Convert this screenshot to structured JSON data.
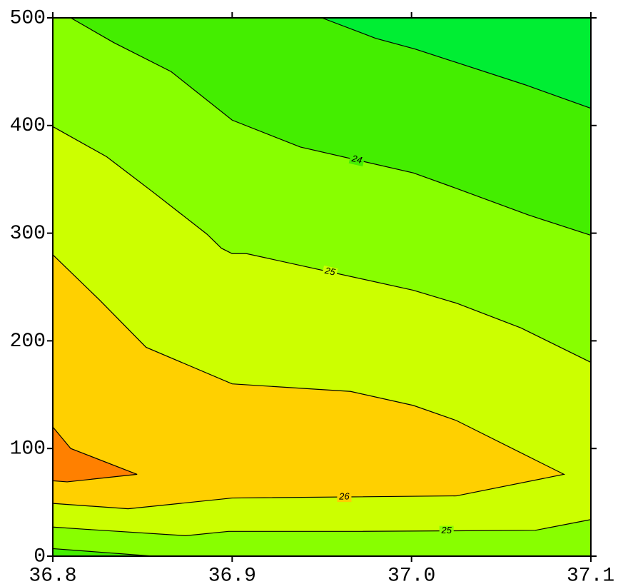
{
  "chart_data": {
    "type": "contour",
    "xlim": [
      36.8,
      37.1
    ],
    "ylim": [
      0,
      500
    ],
    "xticks": [
      36.8,
      36.9,
      {
        "value": 37,
        "label": "37.0"
      },
      37.1
    ],
    "yticks": [
      0,
      100,
      200,
      300,
      400,
      500
    ],
    "background": "#88ff00",
    "contours": [
      {
        "fill": "#44ee00",
        "fill_side": "upper",
        "x": [
          36.81,
          36.834,
          36.866,
          36.9,
          36.938,
          37.001,
          37.021,
          37.065,
          37.1
        ],
        "y": [
          500,
          477,
          450,
          405,
          380,
          356,
          344,
          317,
          298
        ],
        "level": 24
      },
      {
        "fill": "#00ee33",
        "fill_side": "upper",
        "x": [
          36.95,
          36.98,
          37.002,
          37.063,
          37.1
        ],
        "y": [
          500,
          481,
          471,
          438,
          416
        ]
      },
      {
        "fill": "#ccff00",
        "fill_side": "lower",
        "x": [
          36.8,
          36.83,
          36.856,
          36.886,
          36.894,
          36.9,
          36.908,
          37.001,
          37.025,
          37.061,
          37.1
        ],
        "y": [
          399,
          371,
          338,
          299,
          286,
          281,
          281,
          247,
          235,
          212,
          180
        ],
        "level": 25
      },
      {
        "fill": "#88ff00",
        "fill_side": "lower",
        "x": [
          36.8,
          36.818,
          36.874,
          36.898,
          36.97,
          37.069,
          37.1
        ],
        "y": [
          27,
          25,
          19,
          23,
          23,
          24,
          34
        ],
        "level": 25
      },
      {
        "fill": "#44ee00",
        "fill_side": "lower",
        "x": [
          36.8,
          36.856
        ],
        "y": [
          7,
          0
        ]
      },
      {
        "fill": "#ffd000",
        "fill_side": "inside",
        "x": [
          36.8,
          36.826,
          36.852,
          36.9,
          36.966,
          37.001,
          37.025,
          37.085,
          37.025,
          36.9,
          36.842,
          36.8
        ],
        "y": [
          280,
          238,
          194,
          160,
          153,
          140,
          126,
          76,
          56,
          54,
          44,
          49
        ],
        "level": 26
      },
      {
        "fill": "#ff8000",
        "fill_side": "inside",
        "x": [
          36.8,
          36.81,
          36.847,
          36.808,
          36.8
        ],
        "y": [
          120,
          100,
          76,
          69,
          70
        ]
      }
    ]
  }
}
